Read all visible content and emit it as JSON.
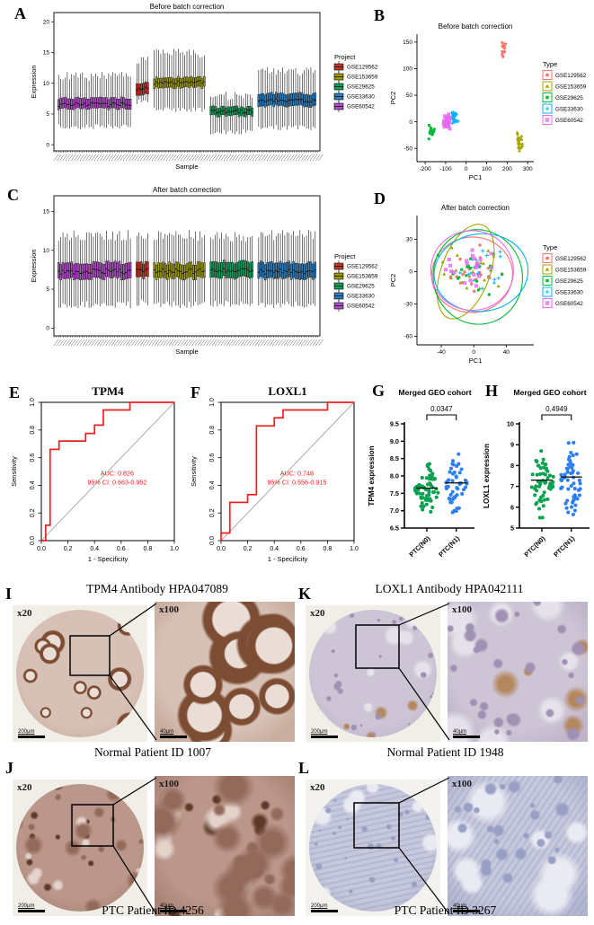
{
  "letters": {
    "A": "A",
    "B": "B",
    "C": "C",
    "D": "D",
    "E": "E",
    "F": "F",
    "G": "G",
    "H": "H",
    "I": "I",
    "J": "J",
    "K": "K",
    "L": "L"
  },
  "chart_data": [
    {
      "panel": "A",
      "type": "boxplot",
      "title": "Before batch correction",
      "xlabel": "Sample",
      "ylabel": "Expression",
      "ylim": [
        -1,
        21.5
      ],
      "yticks": [
        0,
        5,
        10,
        15,
        20
      ],
      "legend_title": "Project",
      "seed": 7,
      "legend": [
        "GSE129562",
        "GSE153659",
        "GSE29625",
        "GSE33630",
        "GSE60542"
      ],
      "palette": {
        "GSE129562": "#bf3a2b",
        "GSE153659": "#9c9a09",
        "GSE29625": "#169e5b",
        "GSE33630": "#2e7ebc",
        "GSE60542": "#ae4fc4"
      },
      "groups": [
        {
          "name": "GSE60542",
          "n": 34,
          "box": [
            5.9,
            7.6
          ],
          "median": 6.6,
          "whisker": [
            2.9,
            11.1
          ]
        },
        {
          "name": "GSE129562",
          "n": 6,
          "box": [
            8.2,
            10.1
          ],
          "median": 9.2,
          "whisker": [
            6.9,
            13.9
          ]
        },
        {
          "name": "GSE153659",
          "n": 24,
          "box": [
            9.3,
            10.9
          ],
          "median": 10.1,
          "whisker": [
            5.7,
            14.9
          ]
        },
        {
          "name": "GSE29625",
          "n": 20,
          "box": [
            4.7,
            6.1
          ],
          "median": 5.4,
          "whisker": [
            2.1,
            7.9
          ]
        },
        {
          "name": "GSE33630",
          "n": 27,
          "box": [
            6.3,
            8.3
          ],
          "median": 7.2,
          "whisker": [
            2.8,
            11.9
          ]
        }
      ]
    },
    {
      "panel": "B",
      "type": "scatter",
      "title": "Before batch correction",
      "xlabel": "PC1",
      "ylabel": "PC2",
      "xlim": [
        -240,
        330
      ],
      "xticks": [
        -200,
        -100,
        0,
        100,
        200,
        300
      ],
      "ylim": [
        -75,
        165
      ],
      "yticks": [
        -50,
        0,
        50,
        100,
        150
      ],
      "legend_title": "Type",
      "seed": 11,
      "series": [
        {
          "name": "GSE129562",
          "color": "#f8766d",
          "shape": "circle",
          "center": [
            183,
            138
          ],
          "sd": [
            6,
            7
          ],
          "n": 14
        },
        {
          "name": "GSE153659",
          "color": "#a3a500",
          "shape": "triangle",
          "center": [
            263,
            -38
          ],
          "sd": [
            9,
            8
          ],
          "n": 22
        },
        {
          "name": "GSE29625",
          "color": "#00ba38",
          "shape": "square",
          "center": [
            -172,
            -18
          ],
          "sd": [
            7,
            5
          ],
          "n": 16
        },
        {
          "name": "GSE33630",
          "color": "#00b0f6",
          "shape": "plus",
          "center": [
            -60,
            7
          ],
          "sd": [
            8,
            6
          ],
          "n": 26
        },
        {
          "name": "GSE60542",
          "color": "#e76bf3",
          "shape": "boxx",
          "center": [
            -95,
            -1
          ],
          "sd": [
            7,
            6
          ],
          "n": 30
        }
      ]
    },
    {
      "panel": "C",
      "type": "boxplot",
      "title": "After batch correction",
      "xlabel": "Sample",
      "ylabel": "Expression",
      "ylim": [
        -1,
        17
      ],
      "yticks": [
        0,
        5,
        10,
        15
      ],
      "legend_title": "Project",
      "seed": 13,
      "legend": [
        "GSE129562",
        "GSE153659",
        "GSE29625",
        "GSE33630",
        "GSE60542"
      ],
      "palette": {
        "GSE129562": "#bf3a2b",
        "GSE153659": "#9c9a09",
        "GSE29625": "#169e5b",
        "GSE33630": "#2e7ebc",
        "GSE60542": "#ae4fc4"
      },
      "groups": [
        {
          "name": "GSE60542",
          "n": 34,
          "box": [
            6.4,
            8.4
          ],
          "median": 7.3,
          "whisker": [
            3.0,
            11.9
          ]
        },
        {
          "name": "GSE129562",
          "n": 6,
          "box": [
            6.5,
            8.4
          ],
          "median": 7.4,
          "whisker": [
            3.2,
            11.8
          ]
        },
        {
          "name": "GSE153659",
          "n": 24,
          "box": [
            6.4,
            8.3
          ],
          "median": 7.3,
          "whisker": [
            3.0,
            11.9
          ]
        },
        {
          "name": "GSE29625",
          "n": 20,
          "box": [
            6.5,
            8.5
          ],
          "median": 7.4,
          "whisker": [
            3.1,
            11.8
          ]
        },
        {
          "name": "GSE33630",
          "n": 27,
          "box": [
            6.4,
            8.4
          ],
          "median": 7.3,
          "whisker": [
            3.0,
            11.9
          ]
        }
      ]
    },
    {
      "panel": "D",
      "type": "pca",
      "title": "After batch correction",
      "xlabel": "PC1",
      "ylabel": "PC2",
      "xlim": [
        -70,
        74
      ],
      "xticks": [
        -40,
        0,
        40
      ],
      "ylim": [
        -68,
        52
      ],
      "yticks": [
        -60,
        -30,
        0,
        30
      ],
      "legend_title": "Type",
      "seed": 17,
      "series": [
        {
          "name": "GSE129562",
          "color": "#f8766d",
          "shape": "circle",
          "center": [
            -2,
            0
          ],
          "sd": [
            17,
            12
          ],
          "n": 18
        },
        {
          "name": "GSE153659",
          "color": "#a3a500",
          "shape": "triangle",
          "center": [
            -6,
            4
          ],
          "sd": [
            16,
            13
          ],
          "n": 20
        },
        {
          "name": "GSE29625",
          "color": "#00ba38",
          "shape": "square",
          "center": [
            2,
            -2
          ],
          "sd": [
            19,
            14
          ],
          "n": 18
        },
        {
          "name": "GSE33630",
          "color": "#00b0f6",
          "shape": "plus",
          "center": [
            8,
            0
          ],
          "sd": [
            19,
            12
          ],
          "n": 20
        },
        {
          "name": "GSE60542",
          "color": "#e76bf3",
          "shape": "boxx",
          "center": [
            -4,
            2
          ],
          "sd": [
            18,
            15
          ],
          "n": 22
        }
      ],
      "ellipses": [
        {
          "name": "GSE129562",
          "color": "#f8766d",
          "cx": -2,
          "cy": -3,
          "rx": 50,
          "ry": 35,
          "rot": -6
        },
        {
          "name": "GSE153659",
          "color": "#a3a500",
          "cx": -10,
          "cy": 0,
          "rx": 30,
          "ry": 46,
          "rot": 20
        },
        {
          "name": "GSE29625",
          "color": "#00ba38",
          "cx": 5,
          "cy": -5,
          "rx": 55,
          "ry": 44,
          "rot": -10
        },
        {
          "name": "GSE33630",
          "color": "#00b0f6",
          "cx": 9,
          "cy": -1,
          "rx": 58,
          "ry": 36,
          "rot": -7
        },
        {
          "name": "GSE60542",
          "color": "#e76bf3",
          "cx": -2,
          "cy": 1,
          "rx": 51,
          "ry": 37,
          "rot": 6
        }
      ]
    },
    {
      "panel": "E",
      "type": "roc",
      "title": "TPM4",
      "xlabel": "1 - Specificity",
      "ylabel": "Sensitivity",
      "xticks": [
        "0.0",
        "0.2",
        "0.4",
        "0.6",
        "0.8",
        "1.0"
      ],
      "yticks": [
        "0.0",
        "0.2",
        "0.4",
        "0.6",
        "0.8",
        "1.0"
      ],
      "annotation": [
        "AUC: 0.826",
        "95% CI: 0.663-0.952"
      ],
      "color": "#ee2020",
      "points": [
        [
          0,
          0
        ],
        [
          0.033,
          0
        ],
        [
          0.033,
          0.111
        ],
        [
          0.066,
          0.111
        ],
        [
          0.066,
          0.66
        ],
        [
          0.133,
          0.66
        ],
        [
          0.133,
          0.72
        ],
        [
          0.333,
          0.72
        ],
        [
          0.333,
          0.775
        ],
        [
          0.4,
          0.775
        ],
        [
          0.4,
          0.835
        ],
        [
          0.466,
          0.835
        ],
        [
          0.466,
          0.945
        ],
        [
          0.666,
          0.945
        ],
        [
          0.666,
          1
        ],
        [
          1,
          1
        ]
      ]
    },
    {
      "panel": "F",
      "type": "roc",
      "title": "LOXL1",
      "xlabel": "1 - Specificity",
      "ylabel": "Sensitivity",
      "xticks": [
        "0.0",
        "0.2",
        "0.4",
        "0.6",
        "0.8",
        "1.0"
      ],
      "yticks": [
        "0.0",
        "0.2",
        "0.4",
        "0.6",
        "0.8",
        "1.0"
      ],
      "annotation": [
        "AUC: 0.748",
        "95% CI: 0.556-0.915"
      ],
      "color": "#ee2020",
      "points": [
        [
          0,
          0
        ],
        [
          0,
          0.055
        ],
        [
          0.066,
          0.055
        ],
        [
          0.066,
          0.277
        ],
        [
          0.2,
          0.277
        ],
        [
          0.2,
          0.333
        ],
        [
          0.266,
          0.333
        ],
        [
          0.266,
          0.83
        ],
        [
          0.4,
          0.83
        ],
        [
          0.4,
          0.888
        ],
        [
          0.466,
          0.888
        ],
        [
          0.466,
          0.945
        ],
        [
          0.8,
          0.945
        ],
        [
          0.8,
          1
        ],
        [
          1,
          1
        ]
      ]
    },
    {
      "panel": "G",
      "type": "dotplot",
      "title": "Merged GEO cohort",
      "ylabel": "TPM4 expression",
      "ylim": [
        6.5,
        9.5
      ],
      "yticks": [
        "6.5",
        "7.0",
        "7.5",
        "8.0",
        "8.5",
        "9.0",
        "9.5"
      ],
      "pvalue": "0.0347",
      "seed": 23,
      "groups": [
        {
          "label": "PTC(N0)",
          "color": "#0aa14f",
          "n": 62,
          "mean": 7.62,
          "sd": 0.33,
          "median": 7.65,
          "min": 6.95,
          "max": 8.9
        },
        {
          "label": "PTC(N1)",
          "color": "#2f7ff0",
          "n": 48,
          "mean": 7.85,
          "sd": 0.4,
          "median": 7.8,
          "min": 6.95,
          "max": 9.2
        }
      ]
    },
    {
      "panel": "H",
      "type": "dotplot",
      "title": "Merged GEO cohort",
      "ylabel": "LOXL1 expression",
      "ylim": [
        5,
        10
      ],
      "yticks": [
        "5",
        "6",
        "7",
        "8",
        "9",
        "10"
      ],
      "pvalue": "0.4949",
      "seed": 29,
      "groups": [
        {
          "label": "PTC(N0)",
          "color": "#0aa14f",
          "n": 56,
          "mean": 7.25,
          "sd": 0.72,
          "median": 7.3,
          "min": 5.5,
          "max": 9.4
        },
        {
          "label": "PTC(N1)",
          "color": "#2f7ff0",
          "n": 56,
          "mean": 7.3,
          "sd": 0.78,
          "median": 7.45,
          "min": 5.65,
          "max": 9.1
        }
      ]
    }
  ],
  "ihc": {
    "titles": [
      "TPM4 Antibody HPA047089",
      "LOXL1 Antibody HPA042111"
    ],
    "panels": [
      {
        "id": "I",
        "mag_low": "x20",
        "mag_high": "x100",
        "scale_low": "200µm",
        "scale_high": "40µm",
        "caption": "Normal Patient ID 1007",
        "texture": "follicles",
        "colors": {
          "bg": "#f1eee8",
          "base": "#d7c1b6",
          "spot": "#b69483",
          "ring": "#7c4c33",
          "lumen": "#e9ddd5",
          "edge": "#c9ad9f"
        }
      },
      {
        "id": "K",
        "mag_low": "x20",
        "mag_high": "x100",
        "scale_low": "200µm",
        "scale_high": "40µm",
        "caption": "Normal Patient ID 1948",
        "texture": "cells",
        "colors": {
          "bg": "#f1eee8",
          "base": "#cdc5d5",
          "spot": "#a090b4",
          "ring": "#8b80a6",
          "lumen": "#e6e1ea",
          "edge": "#bfb4ca",
          "accent": "#b3885f"
        }
      },
      {
        "id": "J",
        "mag_low": "x20",
        "mag_high": "x100",
        "scale_low": "200µm",
        "scale_high": "40µm",
        "caption": "PTC Patient ID 4256",
        "texture": "mottled",
        "colors": {
          "bg": "#f1eee8",
          "base": "#bb978b",
          "spot": "#93695a",
          "ring": "#5d3927",
          "lumen": "#e4d3cb",
          "edge": "#a98577"
        }
      },
      {
        "id": "L",
        "mag_low": "x20",
        "mag_high": "x100",
        "scale_low": "200µm",
        "scale_high": "40µm",
        "caption": "PTC Patient ID 3267",
        "texture": "streaks",
        "colors": {
          "bg": "#f4f2ee",
          "base": "#c6c8db",
          "spot": "#989fc4",
          "ring": "#7b82a9",
          "lumen": "#e9eaf2",
          "edge": "#b3b6cf"
        }
      }
    ]
  }
}
